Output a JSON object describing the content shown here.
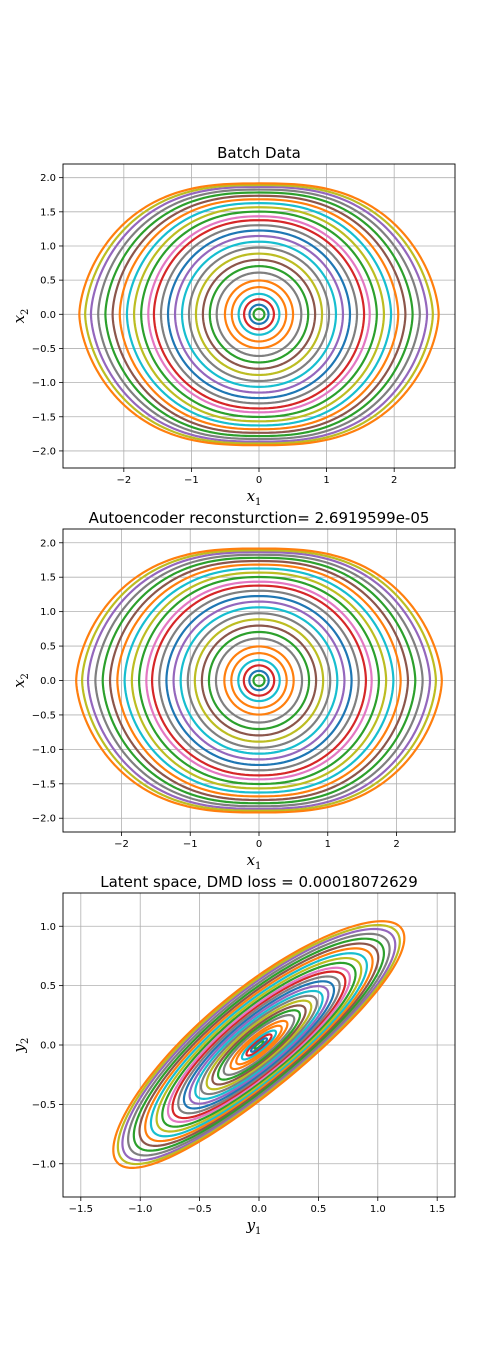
{
  "chart_data": [
    {
      "type": "line",
      "title": "Batch Data",
      "xlabel": {
        "base": "x",
        "sub": "1"
      },
      "ylabel": {
        "base": "x",
        "sub": "2"
      },
      "xlim": [
        -2.9,
        2.9
      ],
      "ylim": [
        -2.25,
        2.2
      ],
      "xticks": [
        -2,
        -1,
        0,
        1,
        2
      ],
      "yticks": [
        -2.0,
        -1.5,
        -1.0,
        -0.5,
        0.0,
        0.5,
        1.0,
        1.5,
        2.0
      ],
      "xtick_labels": [
        "−2",
        "−1",
        "0",
        "1",
        "2"
      ],
      "ytick_labels": [
        "−2.0",
        "−1.5",
        "−1.0",
        "−0.5",
        "0.0",
        "0.5",
        "1.0",
        "1.5",
        "2.0"
      ],
      "grid": true,
      "family": "pendulum",
      "series": [
        {
          "amplitude": 0.08,
          "color": "#2ca02c"
        },
        {
          "amplitude": 0.14,
          "color": "#1f77b4"
        },
        {
          "amplitude": 0.22,
          "color": "#d62728"
        },
        {
          "amplitude": 0.3,
          "color": "#17becf"
        },
        {
          "amplitude": 0.4,
          "color": "#ff7f0e"
        },
        {
          "amplitude": 0.5,
          "color": "#ff7f0e"
        },
        {
          "amplitude": 0.62,
          "color": "#7f7f7f"
        },
        {
          "amplitude": 0.72,
          "color": "#2ca02c"
        },
        {
          "amplitude": 0.82,
          "color": "#8c564b"
        },
        {
          "amplitude": 0.92,
          "color": "#bcbd22"
        },
        {
          "amplitude": 1.02,
          "color": "#7f7f7f"
        },
        {
          "amplitude": 1.12,
          "color": "#17becf"
        },
        {
          "amplitude": 1.22,
          "color": "#9467bd"
        },
        {
          "amplitude": 1.32,
          "color": "#1f77b4"
        },
        {
          "amplitude": 1.42,
          "color": "#7f7f7f"
        },
        {
          "amplitude": 1.52,
          "color": "#d62728"
        },
        {
          "amplitude": 1.6,
          "color": "#e377c2"
        },
        {
          "amplitude": 1.7,
          "color": "#2ca02c"
        },
        {
          "amplitude": 1.8,
          "color": "#bcbd22"
        },
        {
          "amplitude": 1.9,
          "color": "#17becf"
        },
        {
          "amplitude": 2.0,
          "color": "#ff7f0e"
        },
        {
          "amplitude": 2.1,
          "color": "#8c564b"
        },
        {
          "amplitude": 2.2,
          "color": "#2ca02c"
        },
        {
          "amplitude": 2.3,
          "color": "#7f7f7f"
        },
        {
          "amplitude": 2.4,
          "color": "#9467bd"
        },
        {
          "amplitude": 2.48,
          "color": "#bcbd22"
        },
        {
          "amplitude": 2.56,
          "color": "#ff7f0e"
        }
      ]
    },
    {
      "type": "line",
      "title": "Autoencoder reconsturction= 2.6919599e-05",
      "xlabel": {
        "base": "x",
        "sub": "1"
      },
      "ylabel": {
        "base": "x",
        "sub": "2"
      },
      "xlim": [
        -2.85,
        2.85
      ],
      "ylim": [
        -2.2,
        2.2
      ],
      "xticks": [
        -2,
        -1,
        0,
        1,
        2
      ],
      "yticks": [
        -2.0,
        -1.5,
        -1.0,
        -0.5,
        0.0,
        0.5,
        1.0,
        1.5,
        2.0
      ],
      "xtick_labels": [
        "−2",
        "−1",
        "0",
        "1",
        "2"
      ],
      "ytick_labels": [
        "−2.0",
        "−1.5",
        "−1.0",
        "−0.5",
        "0.0",
        "0.5",
        "1.0",
        "1.5",
        "2.0"
      ],
      "grid": true,
      "family": "pendulum",
      "series": [
        {
          "amplitude": 0.08,
          "color": "#2ca02c"
        },
        {
          "amplitude": 0.14,
          "color": "#1f77b4"
        },
        {
          "amplitude": 0.22,
          "color": "#d62728"
        },
        {
          "amplitude": 0.3,
          "color": "#17becf"
        },
        {
          "amplitude": 0.4,
          "color": "#ff7f0e"
        },
        {
          "amplitude": 0.5,
          "color": "#ff7f0e"
        },
        {
          "amplitude": 0.62,
          "color": "#7f7f7f"
        },
        {
          "amplitude": 0.72,
          "color": "#2ca02c"
        },
        {
          "amplitude": 0.82,
          "color": "#8c564b"
        },
        {
          "amplitude": 0.92,
          "color": "#bcbd22"
        },
        {
          "amplitude": 1.02,
          "color": "#7f7f7f"
        },
        {
          "amplitude": 1.12,
          "color": "#17becf"
        },
        {
          "amplitude": 1.22,
          "color": "#9467bd"
        },
        {
          "amplitude": 1.32,
          "color": "#1f77b4"
        },
        {
          "amplitude": 1.42,
          "color": "#7f7f7f"
        },
        {
          "amplitude": 1.52,
          "color": "#d62728"
        },
        {
          "amplitude": 1.6,
          "color": "#e377c2"
        },
        {
          "amplitude": 1.7,
          "color": "#2ca02c"
        },
        {
          "amplitude": 1.8,
          "color": "#bcbd22"
        },
        {
          "amplitude": 1.9,
          "color": "#17becf"
        },
        {
          "amplitude": 2.0,
          "color": "#ff7f0e"
        },
        {
          "amplitude": 2.1,
          "color": "#8c564b"
        },
        {
          "amplitude": 2.2,
          "color": "#2ca02c"
        },
        {
          "amplitude": 2.3,
          "color": "#7f7f7f"
        },
        {
          "amplitude": 2.4,
          "color": "#9467bd"
        },
        {
          "amplitude": 2.48,
          "color": "#bcbd22"
        },
        {
          "amplitude": 2.56,
          "color": "#ff7f0e"
        }
      ]
    },
    {
      "type": "line",
      "title": "Latent space, DMD loss = 0.00018072629",
      "xlabel": {
        "base": "y",
        "sub": "1"
      },
      "ylabel": {
        "base": "y",
        "sub": "2"
      },
      "xlim": [
        -1.65,
        1.65
      ],
      "ylim": [
        -1.28,
        1.28
      ],
      "xticks": [
        -1.5,
        -1.0,
        -0.5,
        0.0,
        0.5,
        1.0,
        1.5
      ],
      "yticks": [
        -1.0,
        -0.5,
        0.0,
        0.5,
        1.0
      ],
      "xtick_labels": [
        "−1.5",
        "−1.0",
        "−0.5",
        "0.0",
        "0.5",
        "1.0",
        "1.5"
      ],
      "ytick_labels": [
        "−1.0",
        "−0.5",
        "0.0",
        "0.5",
        "1.0"
      ],
      "grid": true,
      "family": "tilted",
      "series": [
        {
          "amplitude": 0.08,
          "color": "#2ca02c"
        },
        {
          "amplitude": 0.14,
          "color": "#1f77b4"
        },
        {
          "amplitude": 0.22,
          "color": "#d62728"
        },
        {
          "amplitude": 0.3,
          "color": "#17becf"
        },
        {
          "amplitude": 0.4,
          "color": "#ff7f0e"
        },
        {
          "amplitude": 0.5,
          "color": "#ff7f0e"
        },
        {
          "amplitude": 0.62,
          "color": "#7f7f7f"
        },
        {
          "amplitude": 0.72,
          "color": "#2ca02c"
        },
        {
          "amplitude": 0.82,
          "color": "#8c564b"
        },
        {
          "amplitude": 0.92,
          "color": "#bcbd22"
        },
        {
          "amplitude": 1.02,
          "color": "#7f7f7f"
        },
        {
          "amplitude": 1.12,
          "color": "#17becf"
        },
        {
          "amplitude": 1.22,
          "color": "#9467bd"
        },
        {
          "amplitude": 1.32,
          "color": "#1f77b4"
        },
        {
          "amplitude": 1.42,
          "color": "#7f7f7f"
        },
        {
          "amplitude": 1.52,
          "color": "#d62728"
        },
        {
          "amplitude": 1.6,
          "color": "#e377c2"
        },
        {
          "amplitude": 1.7,
          "color": "#2ca02c"
        },
        {
          "amplitude": 1.8,
          "color": "#bcbd22"
        },
        {
          "amplitude": 1.9,
          "color": "#17becf"
        },
        {
          "amplitude": 2.0,
          "color": "#ff7f0e"
        },
        {
          "amplitude": 2.1,
          "color": "#8c564b"
        },
        {
          "amplitude": 2.2,
          "color": "#2ca02c"
        },
        {
          "amplitude": 2.3,
          "color": "#7f7f7f"
        },
        {
          "amplitude": 2.4,
          "color": "#9467bd"
        },
        {
          "amplitude": 2.48,
          "color": "#bcbd22"
        },
        {
          "amplitude": 2.56,
          "color": "#ff7f0e"
        }
      ]
    }
  ]
}
